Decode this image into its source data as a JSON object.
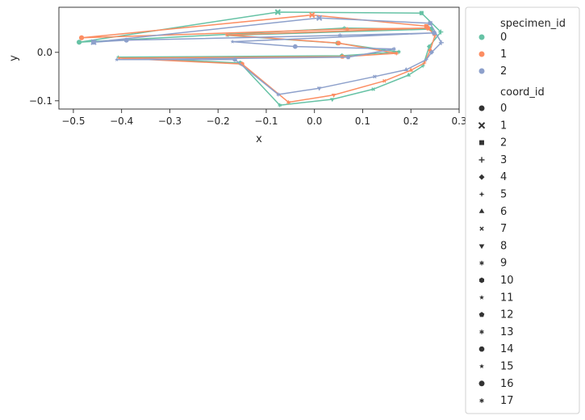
{
  "chart_data": {
    "type": "line",
    "xlabel": "x",
    "ylabel": "y",
    "xlim": [
      -0.53,
      0.3
    ],
    "ylim": [
      -0.117,
      0.093
    ],
    "x_ticks": [
      -0.5,
      -0.4,
      -0.3,
      -0.2,
      -0.1,
      0.0,
      0.1,
      0.2,
      0.3
    ],
    "x_tick_labels": [
      "−0.5",
      "−0.4",
      "−0.3",
      "−0.2",
      "−0.1",
      "0.0",
      "0.1",
      "0.2",
      "0.3"
    ],
    "y_ticks": [
      -0.1,
      0.0
    ],
    "y_tick_labels": [
      "−0.1",
      "0.0"
    ],
    "grid": false,
    "legend_placement": "outside right",
    "hue_legend": {
      "title": "specimen_id",
      "entries": [
        {
          "label": "0",
          "color": "#66c2a5"
        },
        {
          "label": "1",
          "color": "#fc8d62"
        },
        {
          "label": "2",
          "color": "#8da0cb"
        }
      ]
    },
    "style_legend": {
      "title": "coord_id",
      "entries": [
        {
          "label": "0",
          "marker": "circle"
        },
        {
          "label": "1",
          "marker": "x"
        },
        {
          "label": "2",
          "marker": "square"
        },
        {
          "label": "3",
          "marker": "plus"
        },
        {
          "label": "4",
          "marker": "diamond"
        },
        {
          "label": "5",
          "marker": "star4"
        },
        {
          "label": "6",
          "marker": "triangle-up"
        },
        {
          "label": "7",
          "marker": "small-x"
        },
        {
          "label": "8",
          "marker": "triangle-down"
        },
        {
          "label": "9",
          "marker": "asterisk"
        },
        {
          "label": "10",
          "marker": "hexagon"
        },
        {
          "label": "11",
          "marker": "star"
        },
        {
          "label": "12",
          "marker": "pentagon"
        },
        {
          "label": "13",
          "marker": "asterisk"
        },
        {
          "label": "14",
          "marker": "octagon"
        },
        {
          "label": "15",
          "marker": "star"
        },
        {
          "label": "16",
          "marker": "circle"
        },
        {
          "label": "17",
          "marker": "asterisk"
        }
      ]
    },
    "series": [
      {
        "name": "0",
        "color": "#66c2a5",
        "points": [
          [
            -0.488,
            0.021
          ],
          [
            -0.076,
            0.083
          ],
          [
            0.222,
            0.081
          ],
          [
            0.262,
            0.042
          ],
          [
            0.238,
            0.012
          ],
          [
            0.225,
            -0.028
          ],
          [
            0.195,
            -0.047
          ],
          [
            0.122,
            -0.076
          ],
          [
            0.037,
            -0.097
          ],
          [
            -0.072,
            -0.109
          ],
          [
            -0.154,
            -0.022
          ],
          [
            -0.407,
            -0.01
          ],
          [
            0.057,
            -0.007
          ],
          [
            0.175,
            0.001
          ],
          [
            0.048,
            0.019
          ],
          [
            -0.18,
            0.035
          ],
          [
            0.242,
            0.048
          ],
          [
            0.062,
            0.05
          ],
          [
            -0.488,
            0.021
          ]
        ]
      },
      {
        "name": "1",
        "color": "#fc8d62",
        "points": [
          [
            -0.483,
            0.03
          ],
          [
            -0.005,
            0.077
          ],
          [
            0.232,
            0.054
          ],
          [
            0.25,
            0.035
          ],
          [
            0.24,
            0.004
          ],
          [
            0.228,
            -0.022
          ],
          [
            0.2,
            -0.037
          ],
          [
            0.145,
            -0.059
          ],
          [
            0.04,
            -0.088
          ],
          [
            -0.054,
            -0.103
          ],
          [
            -0.15,
            -0.024
          ],
          [
            -0.405,
            -0.012
          ],
          [
            0.058,
            -0.009
          ],
          [
            0.17,
            -0.002
          ],
          [
            0.05,
            0.019
          ],
          [
            -0.182,
            0.036
          ],
          [
            0.235,
            0.05
          ],
          [
            0.068,
            0.048
          ],
          [
            -0.483,
            0.03
          ]
        ]
      },
      {
        "name": "2",
        "color": "#8da0cb",
        "points": [
          [
            -0.458,
            0.021
          ],
          [
            0.01,
            0.071
          ],
          [
            0.24,
            0.06
          ],
          [
            0.263,
            0.02
          ],
          [
            0.243,
            0.0
          ],
          [
            0.232,
            -0.015
          ],
          [
            0.19,
            -0.036
          ],
          [
            0.125,
            -0.05
          ],
          [
            0.01,
            -0.074
          ],
          [
            -0.075,
            -0.087
          ],
          [
            -0.165,
            -0.015
          ],
          [
            -0.41,
            -0.015
          ],
          [
            0.07,
            -0.01
          ],
          [
            0.165,
            0.007
          ],
          [
            -0.04,
            0.012
          ],
          [
            -0.17,
            0.022
          ],
          [
            0.248,
            0.04
          ],
          [
            0.053,
            0.035
          ],
          [
            -0.39,
            0.025
          ],
          [
            -0.458,
            0.021
          ]
        ]
      }
    ]
  }
}
